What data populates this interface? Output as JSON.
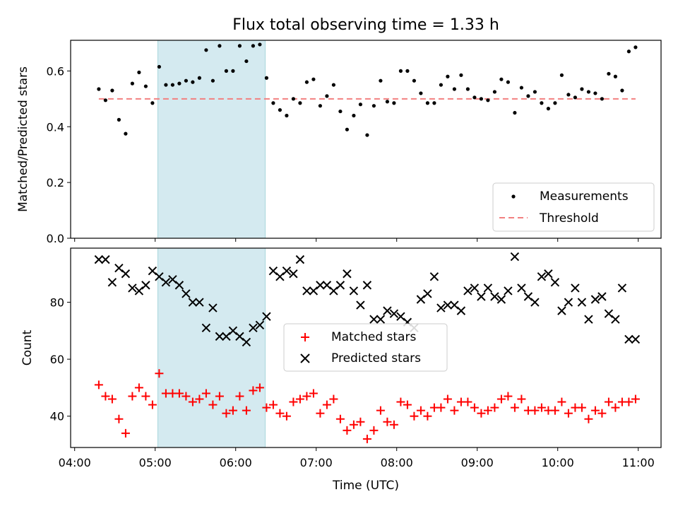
{
  "chart_data": [
    {
      "type": "scatter",
      "title": "Flux total observing time = 1.33 h",
      "xlabel": "",
      "ylabel": "Matched/Predicted stars",
      "ylim": [
        0,
        0.71
      ],
      "xlim": [
        "03:57",
        "11:17"
      ],
      "yticks": [
        "0.0",
        "0.2",
        "0.4",
        "0.6"
      ],
      "shaded_region": [
        "05:02",
        "06:22"
      ],
      "shaded_color": "#cde7ee",
      "legend": {
        "placement": "lower-right",
        "entries": [
          "Measurements",
          "Threshold"
        ]
      },
      "series": [
        {
          "name": "Measurements",
          "marker": "dot",
          "color": "#000000",
          "x": [
            "04:18",
            "04:23",
            "04:28",
            "04:33",
            "04:38",
            "04:43",
            "04:48",
            "04:53",
            "04:58",
            "05:03",
            "05:08",
            "05:13",
            "05:18",
            "05:23",
            "05:28",
            "05:33",
            "05:38",
            "05:43",
            "05:48",
            "05:53",
            "05:58",
            "06:03",
            "06:08",
            "06:13",
            "06:18",
            "06:23",
            "06:28",
            "06:33",
            "06:38",
            "06:43",
            "06:48",
            "06:53",
            "06:58",
            "07:03",
            "07:08",
            "07:13",
            "07:18",
            "07:23",
            "07:28",
            "07:33",
            "07:38",
            "07:43",
            "07:48",
            "07:53",
            "07:58",
            "08:03",
            "08:08",
            "08:13",
            "08:18",
            "08:23",
            "08:28",
            "08:33",
            "08:38",
            "08:43",
            "08:48",
            "08:53",
            "08:58",
            "09:03",
            "09:08",
            "09:13",
            "09:18",
            "09:23",
            "09:28",
            "09:33",
            "09:38",
            "09:43",
            "09:48",
            "09:53",
            "09:58",
            "10:03",
            "10:08",
            "10:13",
            "10:18",
            "10:23",
            "10:28",
            "10:33",
            "10:38",
            "10:43",
            "10:48",
            "10:53",
            "10:58"
          ],
          "y": [
            0.535,
            0.495,
            0.53,
            0.425,
            0.375,
            0.555,
            0.595,
            0.545,
            0.485,
            0.615,
            0.55,
            0.55,
            0.555,
            0.565,
            0.56,
            0.575,
            0.675,
            0.565,
            0.69,
            0.6,
            0.6,
            0.69,
            0.635,
            0.69,
            0.695,
            0.575,
            0.485,
            0.46,
            0.44,
            0.5,
            0.485,
            0.56,
            0.57,
            0.475,
            0.51,
            0.55,
            0.455,
            0.39,
            0.44,
            0.48,
            0.37,
            0.475,
            0.565,
            0.49,
            0.485,
            0.6,
            0.6,
            0.565,
            0.52,
            0.485,
            0.485,
            0.55,
            0.58,
            0.535,
            0.585,
            0.535,
            0.505,
            0.5,
            0.495,
            0.525,
            0.57,
            0.56,
            0.45,
            0.54,
            0.51,
            0.525,
            0.485,
            0.465,
            0.485,
            0.585,
            0.515,
            0.505,
            0.535,
            0.525,
            0.52,
            0.5,
            0.59,
            0.58,
            0.53,
            0.67,
            0.685
          ]
        },
        {
          "name": "Threshold",
          "marker": "dashed-line",
          "color": "#f28080",
          "x": [
            "04:18",
            "10:58"
          ],
          "y": [
            0.5,
            0.5
          ]
        }
      ]
    },
    {
      "type": "scatter",
      "title": "",
      "xlabel": "Time (UTC)",
      "ylabel": "Count",
      "ylim": [
        29,
        99
      ],
      "xlim": [
        "03:57",
        "11:17"
      ],
      "yticks": [
        "40",
        "60",
        "80"
      ],
      "xticks": [
        "04:00",
        "05:00",
        "06:00",
        "07:00",
        "08:00",
        "09:00",
        "10:00",
        "11:00"
      ],
      "shaded_region": [
        "05:02",
        "06:22"
      ],
      "shaded_color": "#cde7ee",
      "legend": {
        "placement": "center",
        "entries": [
          "Matched stars",
          "Predicted stars"
        ]
      },
      "series": [
        {
          "name": "Matched stars",
          "marker": "plus",
          "color": "#ff0000",
          "x": [
            "04:18",
            "04:23",
            "04:28",
            "04:33",
            "04:38",
            "04:43",
            "04:48",
            "04:53",
            "04:58",
            "05:03",
            "05:08",
            "05:13",
            "05:18",
            "05:23",
            "05:28",
            "05:33",
            "05:38",
            "05:43",
            "05:48",
            "05:53",
            "05:58",
            "06:03",
            "06:08",
            "06:13",
            "06:18",
            "06:23",
            "06:28",
            "06:33",
            "06:38",
            "06:43",
            "06:48",
            "06:53",
            "06:58",
            "07:03",
            "07:08",
            "07:13",
            "07:18",
            "07:23",
            "07:28",
            "07:33",
            "07:38",
            "07:43",
            "07:48",
            "07:53",
            "07:58",
            "08:03",
            "08:08",
            "08:13",
            "08:18",
            "08:23",
            "08:28",
            "08:33",
            "08:38",
            "08:43",
            "08:48",
            "08:53",
            "08:58",
            "09:03",
            "09:08",
            "09:13",
            "09:18",
            "09:23",
            "09:28",
            "09:33",
            "09:38",
            "09:43",
            "09:48",
            "09:53",
            "09:58",
            "10:03",
            "10:08",
            "10:13",
            "10:18",
            "10:23",
            "10:28",
            "10:33",
            "10:38",
            "10:43",
            "10:48",
            "10:53",
            "10:58"
          ],
          "y": [
            51,
            47,
            46,
            39,
            34,
            47,
            50,
            47,
            44,
            55,
            48,
            48,
            48,
            47,
            45,
            46,
            48,
            44,
            47,
            41,
            42,
            47,
            42,
            49,
            50,
            43,
            44,
            41,
            40,
            45,
            46,
            47,
            48,
            41,
            44,
            46,
            39,
            35,
            37,
            38,
            32,
            35,
            42,
            38,
            37,
            45,
            44,
            40,
            42,
            40,
            43,
            43,
            46,
            42,
            45,
            45,
            43,
            41,
            42,
            43,
            46,
            47,
            43,
            46,
            42,
            42,
            43,
            42,
            42,
            45,
            41,
            43,
            43,
            39,
            42,
            41,
            45,
            43,
            45,
            45,
            46
          ]
        },
        {
          "name": "Predicted stars",
          "marker": "x",
          "color": "#000000",
          "x": [
            "04:18",
            "04:23",
            "04:28",
            "04:33",
            "04:38",
            "04:43",
            "04:48",
            "04:53",
            "04:58",
            "05:03",
            "05:08",
            "05:13",
            "05:18",
            "05:23",
            "05:28",
            "05:33",
            "05:38",
            "05:43",
            "05:48",
            "05:53",
            "05:58",
            "06:03",
            "06:08",
            "06:13",
            "06:18",
            "06:23",
            "06:28",
            "06:33",
            "06:38",
            "06:43",
            "06:48",
            "06:53",
            "06:58",
            "07:03",
            "07:08",
            "07:13",
            "07:18",
            "07:23",
            "07:28",
            "07:33",
            "07:38",
            "07:43",
            "07:48",
            "07:53",
            "07:58",
            "08:03",
            "08:08",
            "08:13",
            "08:18",
            "08:23",
            "08:28",
            "08:33",
            "08:38",
            "08:43",
            "08:48",
            "08:53",
            "08:58",
            "09:03",
            "09:08",
            "09:13",
            "09:18",
            "09:23",
            "09:28",
            "09:33",
            "09:38",
            "09:43",
            "09:48",
            "09:53",
            "09:58",
            "10:03",
            "10:08",
            "10:13",
            "10:18",
            "10:23",
            "10:28",
            "10:33",
            "10:38",
            "10:43",
            "10:48",
            "10:53",
            "10:58"
          ],
          "y": [
            95,
            95,
            87,
            92,
            90,
            85,
            84,
            86,
            91,
            89,
            87,
            88,
            86,
            83,
            80,
            80,
            71,
            78,
            68,
            68,
            70,
            68,
            66,
            71,
            72,
            75,
            91,
            89,
            91,
            90,
            95,
            84,
            84,
            86,
            86,
            84,
            86,
            90,
            84,
            79,
            86,
            74,
            74,
            77,
            76,
            75,
            73,
            71,
            81,
            83,
            89,
            78,
            79,
            79,
            77,
            84,
            85,
            82,
            85,
            82,
            81,
            84,
            96,
            85,
            82,
            80,
            89,
            90,
            87,
            77,
            80,
            85,
            80,
            74,
            81,
            82,
            76,
            74,
            85,
            67,
            67
          ]
        }
      ]
    }
  ]
}
